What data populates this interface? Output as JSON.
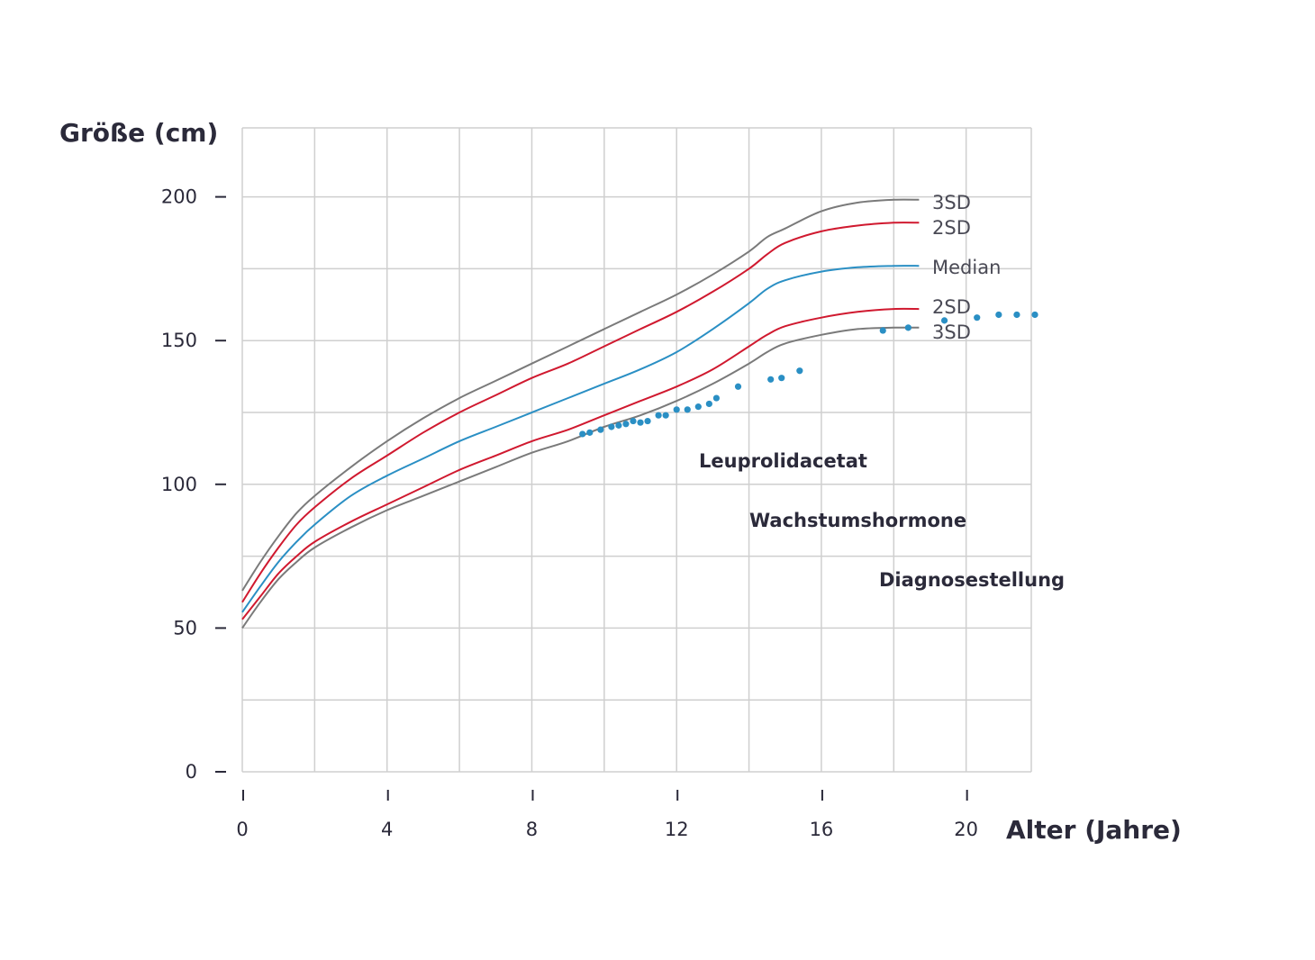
{
  "chart_data": {
    "type": "line",
    "title": "",
    "xlabel": "Alter (Jahre)",
    "ylabel": "Größe (cm)",
    "xlim": [
      0,
      21.8
    ],
    "ylim": [
      0,
      224
    ],
    "x_ticks": [
      0,
      4,
      8,
      12,
      16,
      20
    ],
    "x_tick_labels": [
      "0",
      "4",
      "8",
      "12",
      "16",
      "20"
    ],
    "y_ticks": [
      0,
      50,
      100,
      150,
      200
    ],
    "y_tick_labels": [
      "0",
      "50",
      "100",
      "150",
      "200"
    ],
    "grid": true,
    "series": [
      {
        "name": "3SD",
        "role": "upper",
        "color": "#7a7a7a",
        "x": [
          0,
          0.5,
          1,
          1.5,
          2,
          3,
          4,
          5,
          6,
          7,
          8,
          9,
          10,
          11,
          12,
          13,
          14,
          14.5,
          15,
          16,
          17,
          18,
          18.7
        ],
        "y": [
          63,
          73,
          82,
          90,
          96,
          106,
          115,
          123,
          130,
          136,
          142,
          148,
          154,
          160,
          166,
          173,
          181,
          186,
          189,
          195,
          198,
          199,
          199
        ]
      },
      {
        "name": "2SD",
        "role": "upper",
        "color": "#d0192f",
        "x": [
          0,
          0.5,
          1,
          1.5,
          2,
          3,
          4,
          5,
          6,
          7,
          8,
          9,
          10,
          11,
          12,
          13,
          14,
          14.5,
          15,
          16,
          17,
          18,
          18.7
        ],
        "y": [
          59,
          69,
          78,
          86,
          92,
          102,
          110,
          118,
          125,
          131,
          137,
          142,
          148,
          154,
          160,
          167,
          175,
          180,
          184,
          188,
          190,
          191,
          191
        ]
      },
      {
        "name": "Median",
        "role": "median",
        "color": "#2a8fc4",
        "x": [
          0,
          0.5,
          1,
          1.5,
          2,
          3,
          4,
          5,
          6,
          7,
          8,
          9,
          10,
          11,
          12,
          13,
          14,
          14.5,
          15,
          16,
          17,
          18,
          18.7
        ],
        "y": [
          55.5,
          64.5,
          73,
          80,
          86,
          96,
          103,
          109,
          115,
          120,
          125,
          130,
          135,
          140,
          146,
          154,
          163,
          168,
          171,
          174,
          175.5,
          176,
          176
        ]
      },
      {
        "name": "2SD",
        "role": "lower",
        "color": "#d0192f",
        "x": [
          0,
          0.5,
          1,
          1.5,
          2,
          3,
          4,
          5,
          6,
          7,
          8,
          9,
          10,
          11,
          12,
          13,
          14,
          14.5,
          15,
          16,
          17,
          18,
          18.7
        ],
        "y": [
          53,
          61,
          69,
          75,
          80,
          87,
          93,
          99,
          105,
          110,
          115,
          119,
          124,
          129,
          134,
          140,
          148,
          152,
          155,
          158,
          160,
          161,
          161
        ]
      },
      {
        "name": "3SD",
        "role": "lower",
        "color": "#7a7a7a",
        "x": [
          0,
          0.5,
          1,
          1.5,
          2,
          3,
          4,
          5,
          6,
          7,
          8,
          9,
          10,
          11,
          12,
          13,
          14,
          14.5,
          15,
          16,
          17,
          18,
          18.7
        ],
        "y": [
          50,
          59,
          67,
          73,
          78,
          85,
          91,
          96,
          101,
          106,
          111,
          115,
          120,
          124,
          129,
          135,
          142,
          146,
          149,
          152,
          154,
          154.5,
          154.5
        ]
      }
    ],
    "curve_labels": [
      "3SD",
      "2SD",
      "Median",
      "2SD",
      "3SD"
    ],
    "measurements": {
      "color": "#2a8fc4",
      "points": [
        [
          9.4,
          117.5
        ],
        [
          9.6,
          118
        ],
        [
          9.9,
          119
        ],
        [
          10.2,
          120
        ],
        [
          10.4,
          120.5
        ],
        [
          10.6,
          121
        ],
        [
          10.8,
          122
        ],
        [
          11.0,
          121.5
        ],
        [
          11.2,
          122
        ],
        [
          11.5,
          124
        ],
        [
          11.7,
          124
        ],
        [
          12.0,
          126
        ],
        [
          12.3,
          126
        ],
        [
          12.6,
          127
        ],
        [
          12.9,
          128
        ],
        [
          13.1,
          130
        ],
        [
          13.7,
          134
        ],
        [
          14.6,
          136.5
        ],
        [
          14.9,
          137
        ],
        [
          15.4,
          139.5
        ],
        [
          17.7,
          153.5
        ],
        [
          18.4,
          154.5
        ],
        [
          19.4,
          157
        ],
        [
          20.3,
          158
        ],
        [
          20.9,
          159
        ],
        [
          21.4,
          159
        ],
        [
          21.9,
          159
        ]
      ]
    },
    "annotations": [
      "Leuprolidacetat",
      "Wachstumshormone",
      "Diagnosestellung"
    ]
  }
}
